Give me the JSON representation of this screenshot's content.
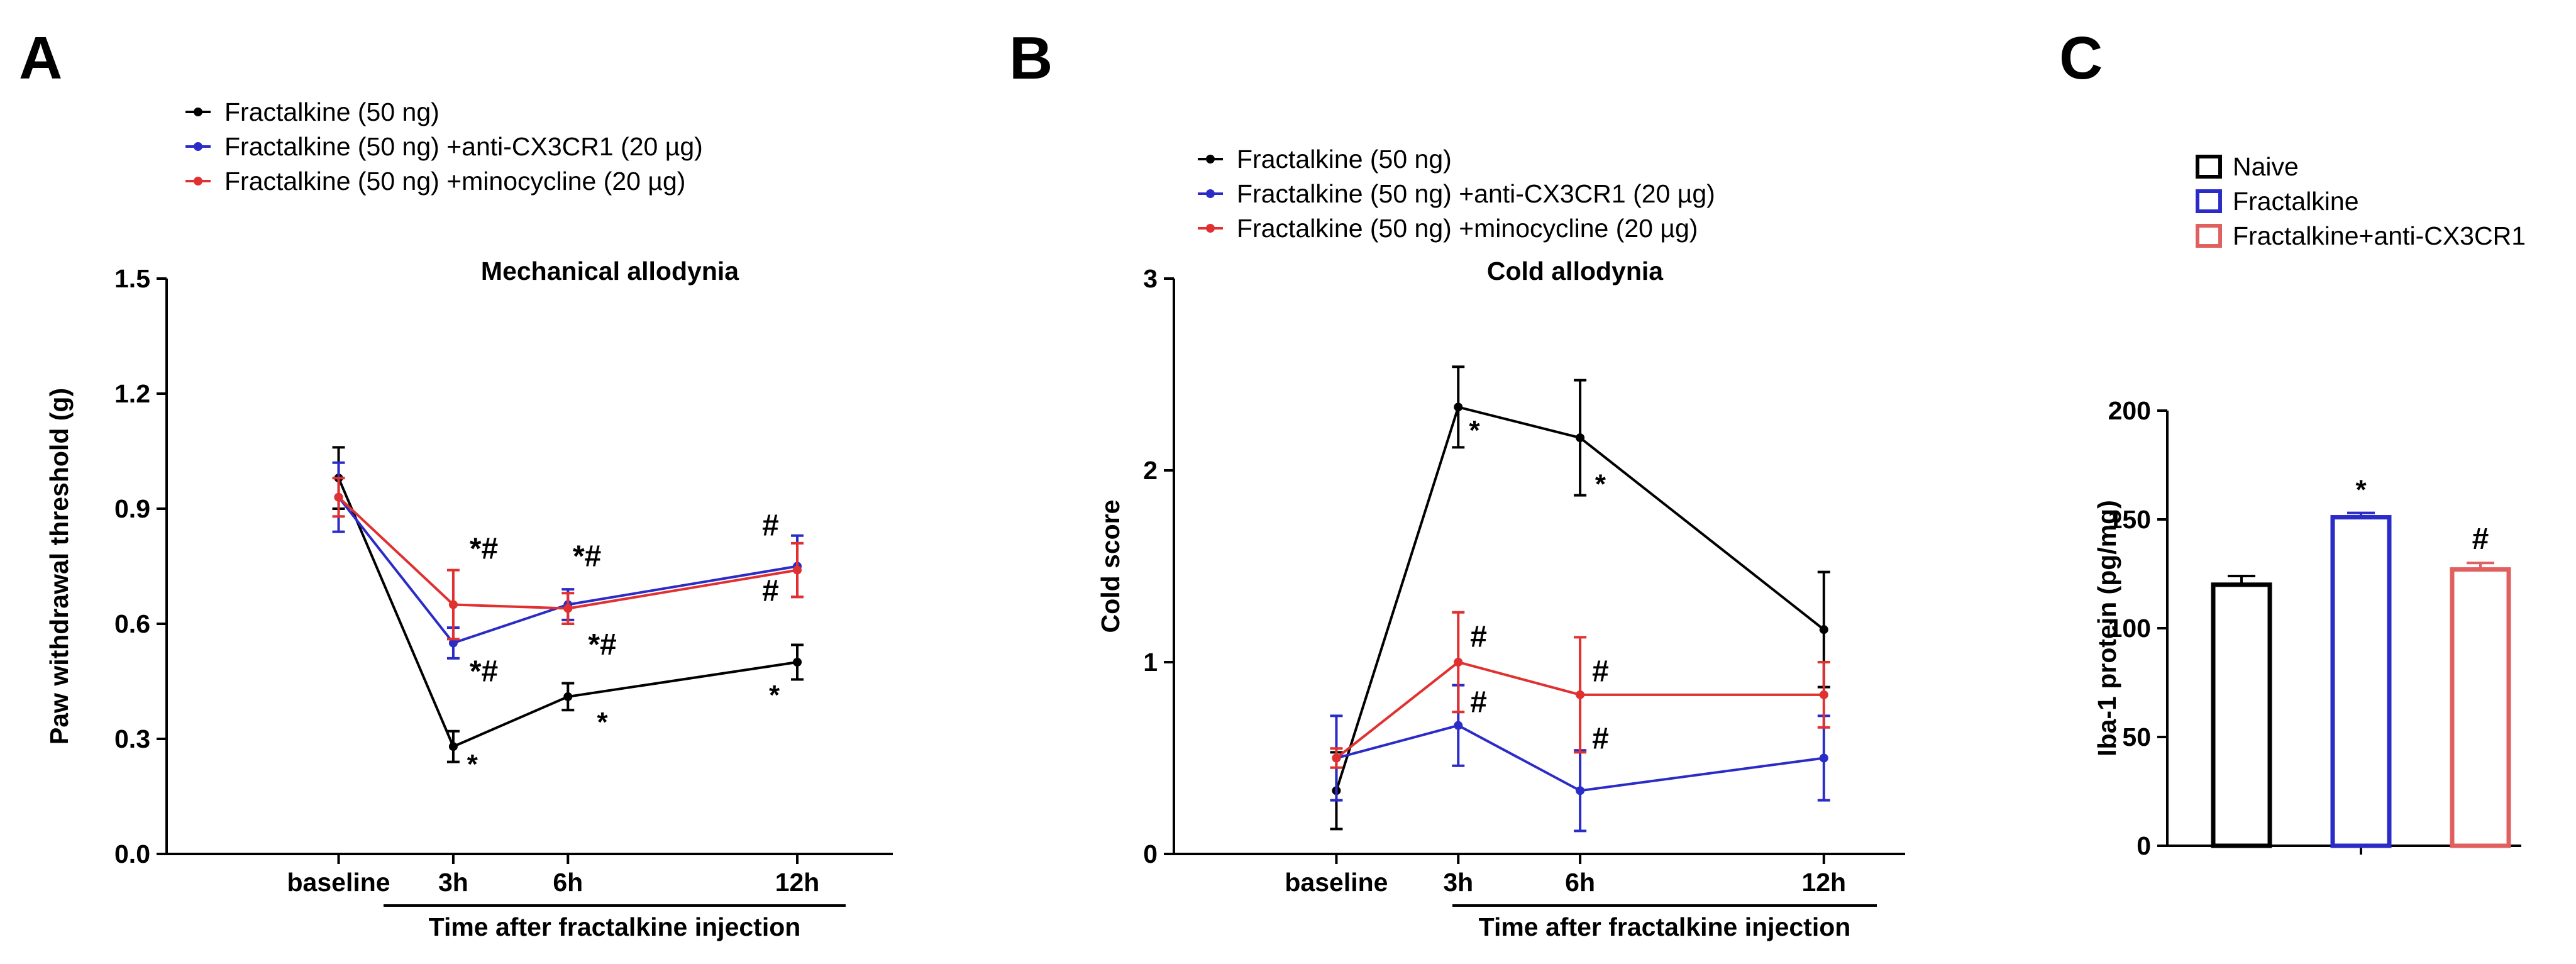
{
  "figure": {
    "panel_letters": [
      "A",
      "B",
      "C"
    ]
  },
  "chart_data": [
    {
      "panel": "A",
      "type": "line",
      "title": "Mechanical allodynia",
      "ylabel": "Paw withdrawal threshold (g)",
      "xlabel": "Time after fractalkine injection",
      "categories": [
        "baseline",
        "3h",
        "6h",
        "12h"
      ],
      "x": [
        0,
        3,
        6,
        12
      ],
      "xlim": [
        -4.5,
        14.5
      ],
      "ylim": [
        0,
        1.5
      ],
      "yticks": [
        0.0,
        0.3,
        0.6,
        0.9,
        1.2,
        1.5
      ],
      "ytick_labels": [
        "0.0",
        "0.3",
        "0.6",
        "0.9",
        "1.2",
        "1.5"
      ],
      "legend_position": "top-left",
      "series": [
        {
          "name": "Fractalkine (50 ng)",
          "color": "#000000",
          "values": [
            0.98,
            0.28,
            0.41,
            0.5
          ],
          "errors": [
            0.08,
            0.04,
            0.035,
            0.045
          ]
        },
        {
          "name": "Fractalkine (50 ng) +anti-CX3CR1 (20 µg)",
          "color": "#2b2bc8",
          "values": [
            0.93,
            0.55,
            0.65,
            0.75
          ],
          "errors": [
            0.09,
            0.04,
            0.04,
            0.08
          ]
        },
        {
          "name": "Fractalkine (50 ng) +minocycline (20 µg)",
          "color": "#e03030",
          "values": [
            0.93,
            0.65,
            0.64,
            0.74
          ],
          "errors": [
            0.05,
            0.09,
            0.04,
            0.07
          ]
        }
      ],
      "annotations": [
        {
          "text": "*#",
          "x": 3.8,
          "y": 0.77,
          "size": "big"
        },
        {
          "text": "*#",
          "x": 3.8,
          "y": 0.45,
          "size": "big"
        },
        {
          "text": "*",
          "x": 3.5,
          "y": 0.21,
          "size": "star"
        },
        {
          "text": "*#",
          "x": 6.5,
          "y": 0.75,
          "size": "big"
        },
        {
          "text": "*#",
          "x": 6.9,
          "y": 0.52,
          "size": "big"
        },
        {
          "text": "*",
          "x": 6.9,
          "y": 0.32,
          "size": "star"
        },
        {
          "text": "#",
          "x": 11.3,
          "y": 0.83,
          "size": "big"
        },
        {
          "text": "#",
          "x": 11.3,
          "y": 0.66,
          "size": "big"
        },
        {
          "text": "*",
          "x": 11.4,
          "y": 0.39,
          "size": "star"
        }
      ]
    },
    {
      "panel": "B",
      "type": "line",
      "title": "Cold allodynia",
      "ylabel": "Cold score",
      "xlabel": "Time after fractalkine injection",
      "categories": [
        "baseline",
        "3h",
        "6h",
        "12h"
      ],
      "x": [
        0,
        3,
        6,
        12
      ],
      "xlim": [
        -4,
        14
      ],
      "ylim": [
        0,
        3
      ],
      "yticks": [
        0,
        1,
        2,
        3
      ],
      "ytick_labels": [
        "0",
        "1",
        "2",
        "3"
      ],
      "legend_position": "top-left",
      "series": [
        {
          "name": "Fractalkine (50 ng)",
          "color": "#000000",
          "values": [
            0.33,
            2.33,
            2.17,
            1.17
          ],
          "errors": [
            0.2,
            0.21,
            0.3,
            0.3
          ]
        },
        {
          "name": "Fractalkine (50 ng) +anti-CX3CR1 (20 µg)",
          "color": "#2b2bc8",
          "values": [
            0.5,
            0.67,
            0.33,
            0.5
          ],
          "errors": [
            0.22,
            0.21,
            0.21,
            0.22
          ]
        },
        {
          "name": "Fractalkine (50 ng) +minocycline (20 µg)",
          "color": "#e03030",
          "values": [
            0.5,
            1.0,
            0.83,
            0.83
          ],
          "errors": [
            0.05,
            0.26,
            0.3,
            0.17
          ]
        }
      ],
      "annotations": [
        {
          "text": "*",
          "x": 3.4,
          "y": 2.16,
          "size": "star"
        },
        {
          "text": "*",
          "x": 6.5,
          "y": 1.88,
          "size": "star"
        },
        {
          "text": "#",
          "x": 3.5,
          "y": 1.08,
          "size": "big"
        },
        {
          "text": "#",
          "x": 3.5,
          "y": 0.74,
          "size": "big"
        },
        {
          "text": "#",
          "x": 6.5,
          "y": 0.9,
          "size": "big"
        },
        {
          "text": "#",
          "x": 6.5,
          "y": 0.55,
          "size": "big"
        }
      ]
    },
    {
      "panel": "C",
      "type": "bar",
      "title": "",
      "ylabel": "Iba-1 protein (pg/mg)",
      "xlabel": "",
      "categories": [
        "Naive",
        "Fractalkine",
        "Fractalkine+anti-CX3CR1"
      ],
      "values": [
        120,
        151,
        127
      ],
      "errors": [
        4,
        2,
        3
      ],
      "colors": [
        "#000000",
        "#2b2bc8",
        "#e06060"
      ],
      "ylim": [
        0,
        200
      ],
      "yticks": [
        0,
        50,
        100,
        150,
        200
      ],
      "ytick_labels": [
        "0",
        "50",
        "100",
        "150",
        "200"
      ],
      "legend_position": "top",
      "annotations": [
        {
          "bar": 1,
          "text": "*",
          "size": "star"
        },
        {
          "bar": 2,
          "text": "#",
          "size": "big"
        }
      ]
    }
  ]
}
